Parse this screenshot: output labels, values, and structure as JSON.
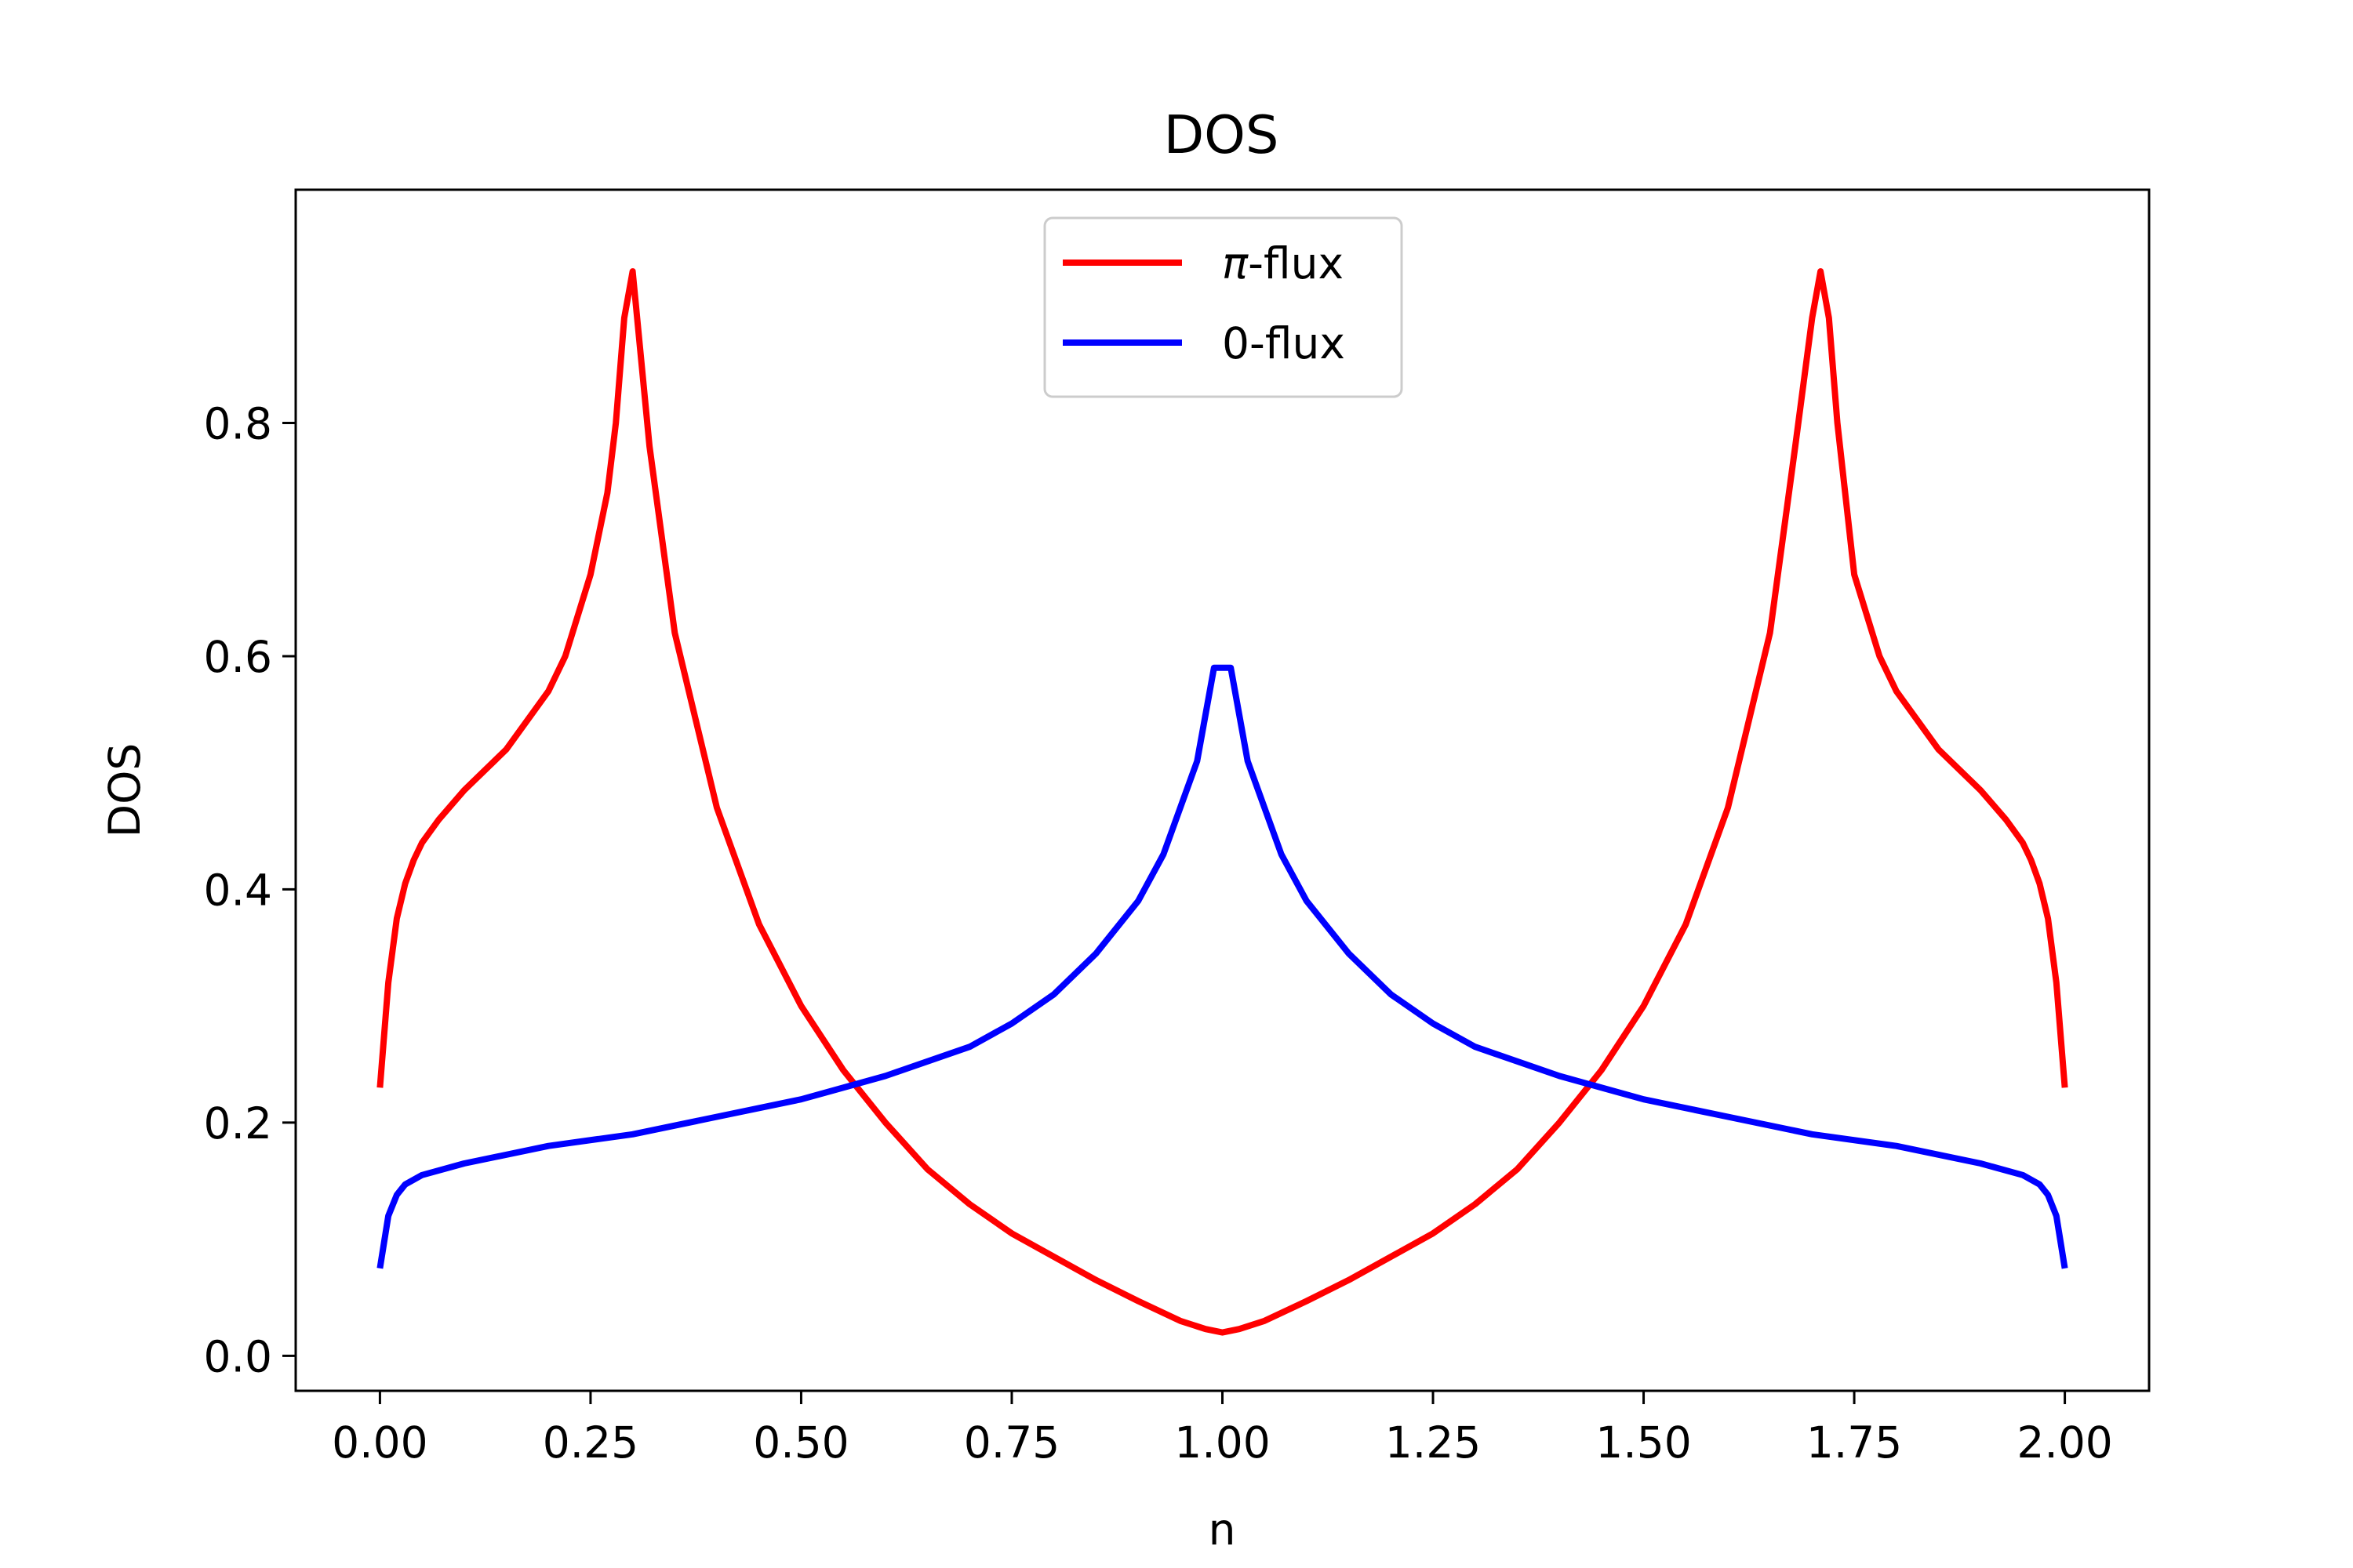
{
  "chart_data": {
    "type": "line",
    "title": "DOS",
    "xlabel": "n",
    "ylabel": "DOS",
    "xlim": [
      -0.1,
      2.1
    ],
    "ylim": [
      -0.03,
      1.0
    ],
    "xticks": [
      0.0,
      0.25,
      0.5,
      0.75,
      1.0,
      1.25,
      1.5,
      1.75,
      2.0
    ],
    "xtick_labels": [
      "0.00",
      "0.25",
      "0.50",
      "0.75",
      "1.00",
      "1.25",
      "1.50",
      "1.75",
      "2.00"
    ],
    "yticks": [
      0.0,
      0.2,
      0.4,
      0.6,
      0.8
    ],
    "ytick_labels": [
      "0.0",
      "0.2",
      "0.4",
      "0.6",
      "0.8"
    ],
    "grid": false,
    "legend_position": "top-center",
    "series": [
      {
        "name": "π-flux",
        "legend_prefix": "π",
        "legend_suffix": "-flux",
        "color": "#ff0000",
        "x": [
          0.0,
          0.01,
          0.02,
          0.03,
          0.04,
          0.05,
          0.07,
          0.1,
          0.15,
          0.2,
          0.22,
          0.25,
          0.27,
          0.28,
          0.29,
          0.3,
          0.32,
          0.35,
          0.4,
          0.45,
          0.5,
          0.55,
          0.6,
          0.65,
          0.7,
          0.75,
          0.8,
          0.85,
          0.9,
          0.95,
          0.98,
          1.0,
          1.02,
          1.05,
          1.1,
          1.15,
          1.2,
          1.25,
          1.3,
          1.35,
          1.4,
          1.45,
          1.5,
          1.55,
          1.6,
          1.65,
          1.68,
          1.7,
          1.71,
          1.72,
          1.73,
          1.75,
          1.78,
          1.8,
          1.85,
          1.9,
          1.93,
          1.95,
          1.96,
          1.97,
          1.98,
          1.99,
          2.0
        ],
        "y": [
          0.23,
          0.32,
          0.375,
          0.405,
          0.425,
          0.44,
          0.46,
          0.485,
          0.52,
          0.57,
          0.6,
          0.67,
          0.74,
          0.8,
          0.89,
          0.93,
          0.78,
          0.62,
          0.47,
          0.37,
          0.3,
          0.245,
          0.2,
          0.16,
          0.13,
          0.105,
          0.085,
          0.065,
          0.047,
          0.03,
          0.023,
          0.02,
          0.023,
          0.03,
          0.047,
          0.065,
          0.085,
          0.105,
          0.13,
          0.16,
          0.2,
          0.245,
          0.3,
          0.37,
          0.47,
          0.62,
          0.78,
          0.89,
          0.93,
          0.89,
          0.8,
          0.67,
          0.6,
          0.57,
          0.52,
          0.485,
          0.46,
          0.44,
          0.425,
          0.405,
          0.375,
          0.32,
          0.23
        ]
      },
      {
        "name": "0-flux",
        "legend_prefix": "",
        "legend_suffix": "0-flux",
        "color": "#0000ff",
        "x": [
          0.0,
          0.01,
          0.02,
          0.03,
          0.05,
          0.1,
          0.2,
          0.3,
          0.4,
          0.5,
          0.6,
          0.7,
          0.75,
          0.8,
          0.85,
          0.9,
          0.93,
          0.95,
          0.97,
          0.99,
          1.0,
          1.01,
          1.03,
          1.05,
          1.07,
          1.1,
          1.15,
          1.2,
          1.25,
          1.3,
          1.4,
          1.5,
          1.6,
          1.7,
          1.8,
          1.9,
          1.95,
          1.97,
          1.98,
          1.99,
          2.0
        ],
        "y": [
          0.075,
          0.12,
          0.138,
          0.147,
          0.155,
          0.165,
          0.18,
          0.19,
          0.205,
          0.22,
          0.24,
          0.265,
          0.285,
          0.31,
          0.345,
          0.39,
          0.43,
          0.47,
          0.51,
          0.59,
          0.59,
          0.59,
          0.51,
          0.47,
          0.43,
          0.39,
          0.345,
          0.31,
          0.285,
          0.265,
          0.24,
          0.22,
          0.205,
          0.19,
          0.18,
          0.165,
          0.155,
          0.147,
          0.138,
          0.12,
          0.075
        ]
      }
    ]
  }
}
